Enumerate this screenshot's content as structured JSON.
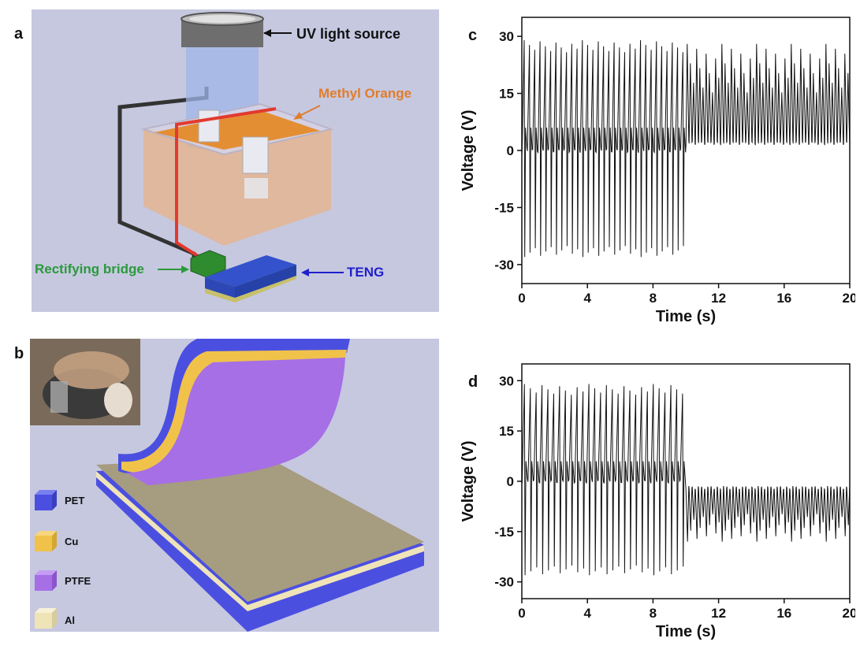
{
  "panel_a": {
    "letter": "a",
    "labels": {
      "uv": "UV light source",
      "methyl": "Methyl Orange",
      "rectifier": "Rectifying bridge",
      "teng": "TENG"
    },
    "colors": {
      "background": "#c6c8e0",
      "wire_red": "#e23a2e",
      "wire_black": "#333333",
      "rectifier": "#2e8b2e",
      "teng_top": "#3352cc",
      "methyl": "#e58a2a",
      "label_green": "#2a9a3a",
      "label_blue": "#1f1fcc",
      "label_orange": "#e07d2c"
    }
  },
  "panel_b": {
    "letter": "b",
    "legend": [
      {
        "name": "PET",
        "color": "#4b4fe0"
      },
      {
        "name": "Cu",
        "color": "#f0c24a"
      },
      {
        "name": "PTFE",
        "color": "#a66fe6"
      },
      {
        "name": "Al",
        "color": "#efe4b8"
      }
    ]
  },
  "chart_data": [
    {
      "panel": "c",
      "type": "line",
      "title": "",
      "xlabel": "Time (s)",
      "ylabel": "Voltage (V)",
      "xlim": [
        0,
        20
      ],
      "ylim": [
        -35,
        35
      ],
      "xticks": [
        0,
        4,
        8,
        12,
        16,
        20
      ],
      "yticks": [
        30,
        15,
        0,
        -15,
        -30
      ],
      "series": [
        {
          "segments": [
            {
              "x_range": [
                0,
                10
              ],
              "pulse_count": 31,
              "positive_peak": 29,
              "negative_peak": -28,
              "baseline": 0
            },
            {
              "x_range": [
                10,
                20
              ],
              "pulse_count": 52,
              "positive_peak": 28,
              "negative_peak": null,
              "baseline": 2
            }
          ]
        }
      ]
    },
    {
      "panel": "d",
      "type": "line",
      "title": "",
      "xlabel": "Time (s)",
      "ylabel": "Voltage (V)",
      "xlim": [
        0,
        20
      ],
      "ylim": [
        -35,
        35
      ],
      "xticks": [
        0,
        4,
        8,
        12,
        16,
        20
      ],
      "yticks": [
        30,
        15,
        0,
        -15,
        -30
      ],
      "series": [
        {
          "segments": [
            {
              "x_range": [
                0,
                10
              ],
              "pulse_count": 28,
              "positive_peak": 29,
              "negative_peak": -28,
              "baseline": 0
            },
            {
              "x_range": [
                10,
                20
              ],
              "pulse_count": 52,
              "positive_peak": null,
              "negative_peak": -18,
              "baseline": -2
            }
          ]
        }
      ]
    }
  ]
}
